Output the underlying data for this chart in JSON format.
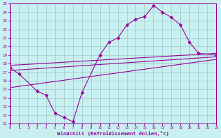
{
  "bg_color": "#c8f0f0",
  "line_color": "#990099",
  "xlim": [
    0,
    23
  ],
  "ylim": [
    11,
    25
  ],
  "xticks": [
    0,
    1,
    2,
    3,
    4,
    5,
    6,
    7,
    8,
    9,
    10,
    11,
    12,
    13,
    14,
    15,
    16,
    17,
    18,
    19,
    20,
    21,
    22,
    23
  ],
  "yticks": [
    11,
    12,
    13,
    14,
    15,
    16,
    17,
    18,
    19,
    20,
    21,
    22,
    23,
    24,
    25
  ],
  "xlabel": "Windchill (Refroidissement éolien,°C)",
  "jagged_x": [
    0,
    1,
    3,
    4,
    5,
    6,
    7,
    8,
    10,
    11,
    12,
    13,
    14,
    15,
    16,
    17,
    18,
    19,
    20,
    21,
    23
  ],
  "jagged_y": [
    17.5,
    16.8,
    14.8,
    14.3,
    12.2,
    11.7,
    11.2,
    14.6,
    19.0,
    20.5,
    21.0,
    22.5,
    23.2,
    23.5,
    24.8,
    24.0,
    23.4,
    22.5,
    20.5,
    19.2,
    19.0
  ],
  "upper_line_x": [
    0,
    23
  ],
  "upper_line_y": [
    17.8,
    19.2
  ],
  "mid_line_x": [
    0,
    23
  ],
  "mid_line_y": [
    17.2,
    18.8
  ],
  "lower_line_x": [
    0,
    23
  ],
  "lower_line_y": [
    15.2,
    18.5
  ],
  "lw": 0.8,
  "ms": 2.5
}
